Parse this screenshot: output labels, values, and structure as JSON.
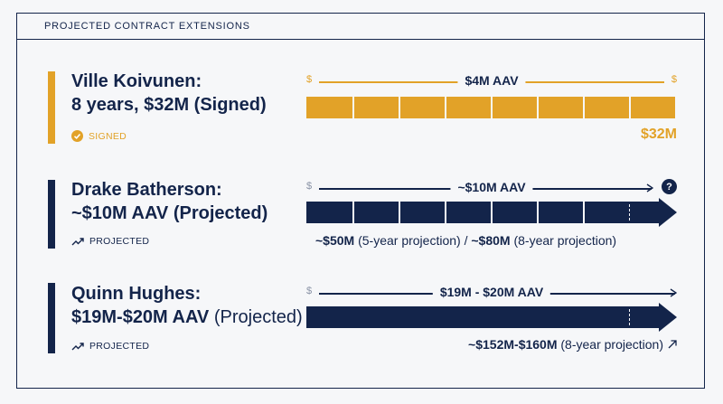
{
  "header": {
    "title": "PROJECTED CONTRACT EXTENSIONS"
  },
  "colors": {
    "navy": "#13244a",
    "gold": "#e2a228",
    "background": "#f6f7f9"
  },
  "rows": [
    {
      "name_line1": "Ville Koivunen:",
      "name_line2": "8 years, $32M (Signed)",
      "status": "SIGNED",
      "status_icon": "check-circle-icon",
      "dollar_left": "$",
      "dollar_right": "$",
      "scale_label": "$4M AAV",
      "total": "$32M"
    },
    {
      "name_line1": "Drake Batherson:",
      "name_line2": "~$10M AAV (Projected)",
      "status": "PROJECTED",
      "status_icon": "trend-up-icon",
      "dollar_left": "$",
      "question_mark": "?",
      "scale_label": "~$10M AAV",
      "total_a_bold": "~$50M",
      "total_a_rest": " (5-year projection) / ",
      "total_b_bold": "~$80M",
      "total_b_rest": " (8-year projection)"
    },
    {
      "name_line1": "Quinn Hughes:",
      "name_line2_bold": "$19M-$20M AAV",
      "name_line2_rest": " (Projected)",
      "status": "PROJECTED",
      "status_icon": "trend-up-icon",
      "dollar_left": "$",
      "scale_label": "$19M - $20M AAV",
      "total_bold": "~$152M-$160M",
      "total_rest": " (8-year projection)",
      "total_icon": "arrow-up-right-icon"
    }
  ]
}
